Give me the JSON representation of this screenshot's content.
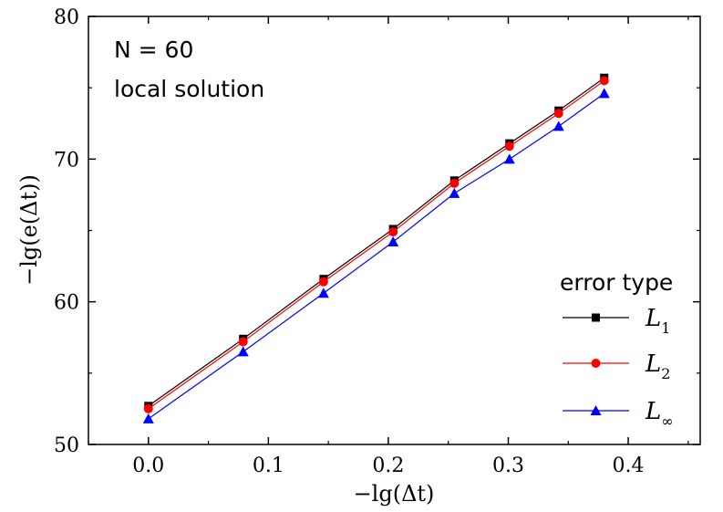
{
  "chart_data": {
    "type": "line",
    "title": "",
    "xlabel": "−lg(Δt)",
    "ylabel": "−lg(e(Δt))",
    "xlim": [
      -0.05,
      0.46
    ],
    "ylim": [
      50,
      80
    ],
    "xticks": [
      "0.0",
      "0.1",
      "0.2",
      "0.3",
      "0.4"
    ],
    "yticks": [
      "50",
      "60",
      "70",
      "80"
    ],
    "annotations": [
      "N = 60",
      "local solution"
    ],
    "legend_title": "error type",
    "legend_position": "bottom-right",
    "x": [
      0.0,
      0.079,
      0.146,
      0.204,
      0.255,
      0.301,
      0.342,
      0.38
    ],
    "series": [
      {
        "name": "L1",
        "label_main": "L",
        "label_sub": "1",
        "marker": "square",
        "color": "#000000",
        "values": [
          52.7,
          57.4,
          61.6,
          65.1,
          68.5,
          71.1,
          73.4,
          75.7
        ]
      },
      {
        "name": "L2",
        "label_main": "L",
        "label_sub": "2",
        "marker": "circle",
        "color": "#ff0000",
        "values": [
          52.5,
          57.2,
          61.4,
          64.9,
          68.3,
          70.9,
          73.2,
          75.5
        ]
      },
      {
        "name": "L∞",
        "label_main": "L",
        "label_sub": "∞",
        "marker": "triangle",
        "color": "#0000ff",
        "values": [
          51.8,
          56.5,
          60.6,
          64.2,
          67.6,
          70.0,
          72.3,
          74.6
        ]
      }
    ]
  }
}
